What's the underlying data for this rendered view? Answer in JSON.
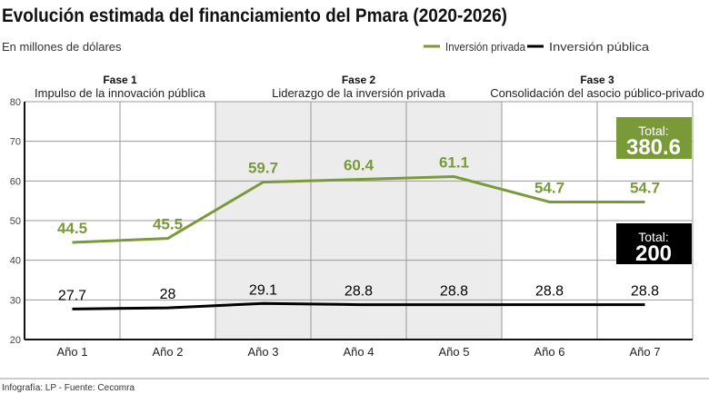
{
  "title": "Evolución estimada del financiamiento del Pmara (2020-2026)",
  "subtitle": "En millones de dólares",
  "footer": "Infografía: LP  - Fuente: Cecomra",
  "colors": {
    "private": "#7a9a3a",
    "public": "#000000",
    "shade": "#ececec"
  },
  "phases": [
    {
      "name": "Fase 1",
      "desc": "Impulso de la innovación pública",
      "years": [
        1,
        2
      ]
    },
    {
      "name": "Fase 2",
      "desc": "Liderazgo de la inversión privada",
      "years": [
        3,
        5
      ]
    },
    {
      "name": "Fase 3",
      "desc": "Consolidación del asocio público-privado",
      "years": [
        6,
        7
      ]
    }
  ],
  "totals": {
    "private": {
      "label": "Total:",
      "value": "380.6"
    },
    "public": {
      "label": "Total:",
      "value": "200"
    }
  },
  "chart_data": {
    "type": "line",
    "categories": [
      "Año 1",
      "Año 2",
      "Año 3",
      "Año 4",
      "Año 5",
      "Año 6",
      "Año 7"
    ],
    "series": [
      {
        "name": "Inversión privada",
        "values": [
          44.5,
          45.5,
          59.7,
          60.4,
          61.1,
          54.7,
          54.7
        ],
        "color": "#7a9a3a"
      },
      {
        "name": "Inversión pública",
        "values": [
          27.7,
          28,
          29.1,
          28.8,
          28.8,
          28.8,
          28.8
        ],
        "color": "#000000"
      }
    ],
    "ylim": [
      20,
      80
    ],
    "yticks": [
      20,
      30,
      40,
      50,
      60,
      70,
      80
    ],
    "grid": true,
    "legend": "top-right",
    "data_labels": true
  }
}
